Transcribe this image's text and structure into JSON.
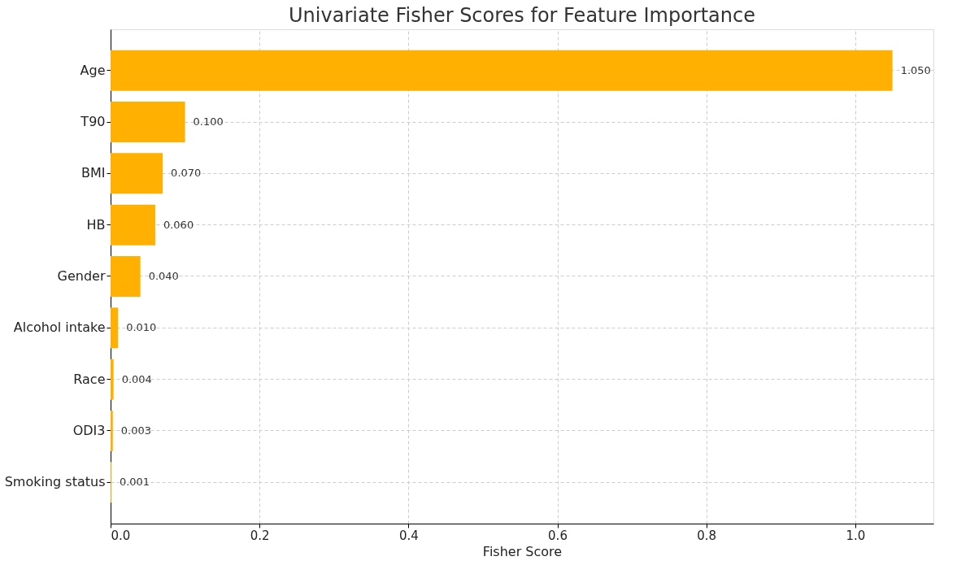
{
  "chart_data": {
    "type": "bar",
    "orientation": "horizontal",
    "title": "Univariate Fisher Scores for Feature Importance",
    "xlabel": "Fisher Score",
    "categories": [
      "Age",
      "T90",
      "BMI",
      "HB",
      "Gender",
      "Alcohol intake",
      "Race",
      "ODI3",
      "Smoking status"
    ],
    "values": [
      1.05,
      0.1,
      0.07,
      0.06,
      0.04,
      0.01,
      0.004,
      0.003,
      0.001
    ],
    "value_labels": [
      "1.050",
      "0.100",
      "0.070",
      "0.060",
      "0.040",
      "0.010",
      "0.004",
      "0.003",
      "0.001"
    ],
    "color": "#ffb000",
    "xlim": [
      0,
      1.105
    ],
    "xticks": [
      {
        "value": 0,
        "label": "0.0"
      },
      {
        "value": 0.2,
        "label": "0.2"
      },
      {
        "value": 0.4,
        "label": "0.4"
      },
      {
        "value": 0.6,
        "label": "0.6"
      },
      {
        "value": 0.8,
        "label": "0.8"
      },
      {
        "value": 1.0,
        "label": "1.0"
      }
    ],
    "grid": true
  }
}
